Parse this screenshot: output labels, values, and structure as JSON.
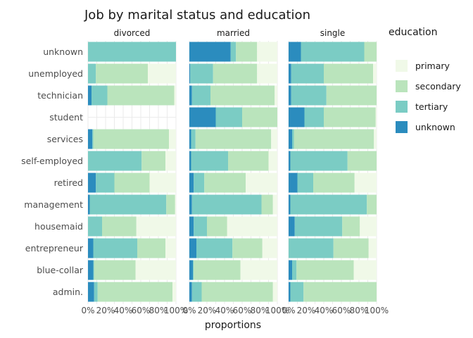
{
  "chart_data": {
    "type": "bar",
    "orientation": "horizontal",
    "stacked": "proportion",
    "title": "Job by marital status and education",
    "xlabel": "proportions",
    "ylabel": "",
    "xlim": [
      0,
      1
    ],
    "x_tick_labels": [
      "0%",
      "20%",
      "40%",
      "60%",
      "80%",
      "100%"
    ],
    "panels": [
      "divorced",
      "married",
      "single"
    ],
    "categories": [
      "unknown",
      "unemployed",
      "technician",
      "student",
      "services",
      "self-employed",
      "retired",
      "management",
      "housemaid",
      "entrepreneur",
      "blue-collar",
      "admin."
    ],
    "legend": {
      "title": "education",
      "position": "right",
      "entries": [
        "primary",
        "secondary",
        "tertiary",
        "unknown"
      ]
    },
    "colors": {
      "primary": "#f0f9e8",
      "secondary": "#bae4bc",
      "tertiary": "#7bccc4",
      "unknown": "#2b8cbe"
    },
    "segment_order": [
      "unknown",
      "tertiary",
      "secondary",
      "primary"
    ],
    "values": {
      "divorced": {
        "unknown": {
          "unknown": 0.0,
          "tertiary": 1.0,
          "secondary": 0.0,
          "primary": 0.0
        },
        "unemployed": {
          "unknown": 0.0,
          "tertiary": 0.09,
          "secondary": 0.59,
          "primary": 0.32
        },
        "technician": {
          "unknown": 0.04,
          "tertiary": 0.18,
          "secondary": 0.76,
          "primary": 0.02
        },
        "student": {
          "unknown": 0.0,
          "tertiary": 0.0,
          "secondary": 0.0,
          "primary": 0.0
        },
        "services": {
          "unknown": 0.05,
          "tertiary": 0.01,
          "secondary": 0.86,
          "primary": 0.08
        },
        "self-employed": {
          "unknown": 0.0,
          "tertiary": 0.61,
          "secondary": 0.27,
          "primary": 0.12
        },
        "retired": {
          "unknown": 0.09,
          "tertiary": 0.21,
          "secondary": 0.4,
          "primary": 0.3
        },
        "management": {
          "unknown": 0.02,
          "tertiary": 0.87,
          "secondary": 0.1,
          "primary": 0.01
        },
        "housemaid": {
          "unknown": 0.0,
          "tertiary": 0.16,
          "secondary": 0.39,
          "primary": 0.45
        },
        "entrepreneur": {
          "unknown": 0.06,
          "tertiary": 0.5,
          "secondary": 0.32,
          "primary": 0.12
        },
        "blue-collar": {
          "unknown": 0.06,
          "tertiary": 0.01,
          "secondary": 0.47,
          "primary": 0.46
        },
        "admin.": {
          "unknown": 0.07,
          "tertiary": 0.04,
          "secondary": 0.85,
          "primary": 0.04
        }
      },
      "married": {
        "unknown": {
          "unknown": 0.47,
          "tertiary": 0.06,
          "secondary": 0.24,
          "primary": 0.23
        },
        "unemployed": {
          "unknown": 0.01,
          "tertiary": 0.26,
          "secondary": 0.5,
          "primary": 0.23
        },
        "technician": {
          "unknown": 0.03,
          "tertiary": 0.21,
          "secondary": 0.73,
          "primary": 0.03
        },
        "student": {
          "unknown": 0.3,
          "tertiary": 0.3,
          "secondary": 0.4,
          "primary": 0.0
        },
        "services": {
          "unknown": 0.02,
          "tertiary": 0.05,
          "secondary": 0.86,
          "primary": 0.07
        },
        "self-employed": {
          "unknown": 0.02,
          "tertiary": 0.42,
          "secondary": 0.46,
          "primary": 0.1
        },
        "retired": {
          "unknown": 0.05,
          "tertiary": 0.12,
          "secondary": 0.47,
          "primary": 0.36
        },
        "management": {
          "unknown": 0.03,
          "tertiary": 0.79,
          "secondary": 0.13,
          "primary": 0.05
        },
        "housemaid": {
          "unknown": 0.05,
          "tertiary": 0.15,
          "secondary": 0.23,
          "primary": 0.57
        },
        "entrepreneur": {
          "unknown": 0.08,
          "tertiary": 0.41,
          "secondary": 0.34,
          "primary": 0.17
        },
        "blue-collar": {
          "unknown": 0.04,
          "tertiary": 0.01,
          "secondary": 0.53,
          "primary": 0.42
        },
        "admin.": {
          "unknown": 0.03,
          "tertiary": 0.11,
          "secondary": 0.81,
          "primary": 0.05
        }
      },
      "single": {
        "unknown": {
          "unknown": 0.14,
          "tertiary": 0.72,
          "secondary": 0.14,
          "primary": 0.0
        },
        "unemployed": {
          "unknown": 0.03,
          "tertiary": 0.37,
          "secondary": 0.56,
          "primary": 0.04
        },
        "technician": {
          "unknown": 0.03,
          "tertiary": 0.4,
          "secondary": 0.57,
          "primary": 0.0
        },
        "student": {
          "unknown": 0.18,
          "tertiary": 0.22,
          "secondary": 0.59,
          "primary": 0.01
        },
        "services": {
          "unknown": 0.04,
          "tertiary": 0.02,
          "secondary": 0.91,
          "primary": 0.03
        },
        "self-employed": {
          "unknown": 0.02,
          "tertiary": 0.65,
          "secondary": 0.33,
          "primary": 0.0
        },
        "retired": {
          "unknown": 0.1,
          "tertiary": 0.18,
          "secondary": 0.47,
          "primary": 0.25
        },
        "management": {
          "unknown": 0.02,
          "tertiary": 0.87,
          "secondary": 0.11,
          "primary": 0.0
        },
        "housemaid": {
          "unknown": 0.07,
          "tertiary": 0.54,
          "secondary": 0.2,
          "primary": 0.19
        },
        "entrepreneur": {
          "unknown": 0.0,
          "tertiary": 0.51,
          "secondary": 0.4,
          "primary": 0.09
        },
        "blue-collar": {
          "unknown": 0.04,
          "tertiary": 0.05,
          "secondary": 0.65,
          "primary": 0.26
        },
        "admin.": {
          "unknown": 0.02,
          "tertiary": 0.15,
          "secondary": 0.83,
          "primary": 0.0
        }
      }
    }
  }
}
